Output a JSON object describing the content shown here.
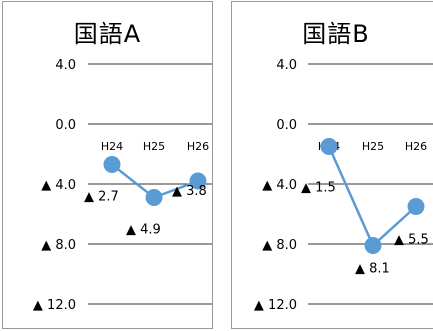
{
  "chart_data": [
    {
      "type": "line",
      "title": "国語A",
      "categories": [
        "H24",
        "H25",
        "H26"
      ],
      "values": [
        -2.7,
        -4.9,
        -3.8
      ],
      "data_labels": [
        "▲ 2.7",
        "▲ 4.9",
        "▲ 3.8"
      ],
      "y_tick_labels": [
        "4.0",
        "0.0",
        "▲ 4.0",
        "▲ 8.0",
        "▲ 12.0"
      ],
      "y_ticks": [
        4,
        0,
        -4,
        -8,
        -12
      ],
      "ylim": [
        -13,
        7
      ],
      "grid": true,
      "color": "#5b9bd5"
    },
    {
      "type": "line",
      "title": "国語B",
      "categories": [
        "H24",
        "H25",
        "H26"
      ],
      "values": [
        -1.5,
        -8.1,
        -5.5
      ],
      "data_labels": [
        "▲ 1.5",
        "▲ 8.1",
        "▲ 5.5"
      ],
      "y_tick_labels": [
        "4.0",
        "0.0",
        "▲ 4.0",
        "▲ 8.0",
        "▲ 12.0"
      ],
      "y_ticks": [
        4,
        0,
        -4,
        -8,
        -12
      ],
      "ylim": [
        -13,
        7
      ],
      "grid": true,
      "color": "#5b9bd5"
    }
  ]
}
